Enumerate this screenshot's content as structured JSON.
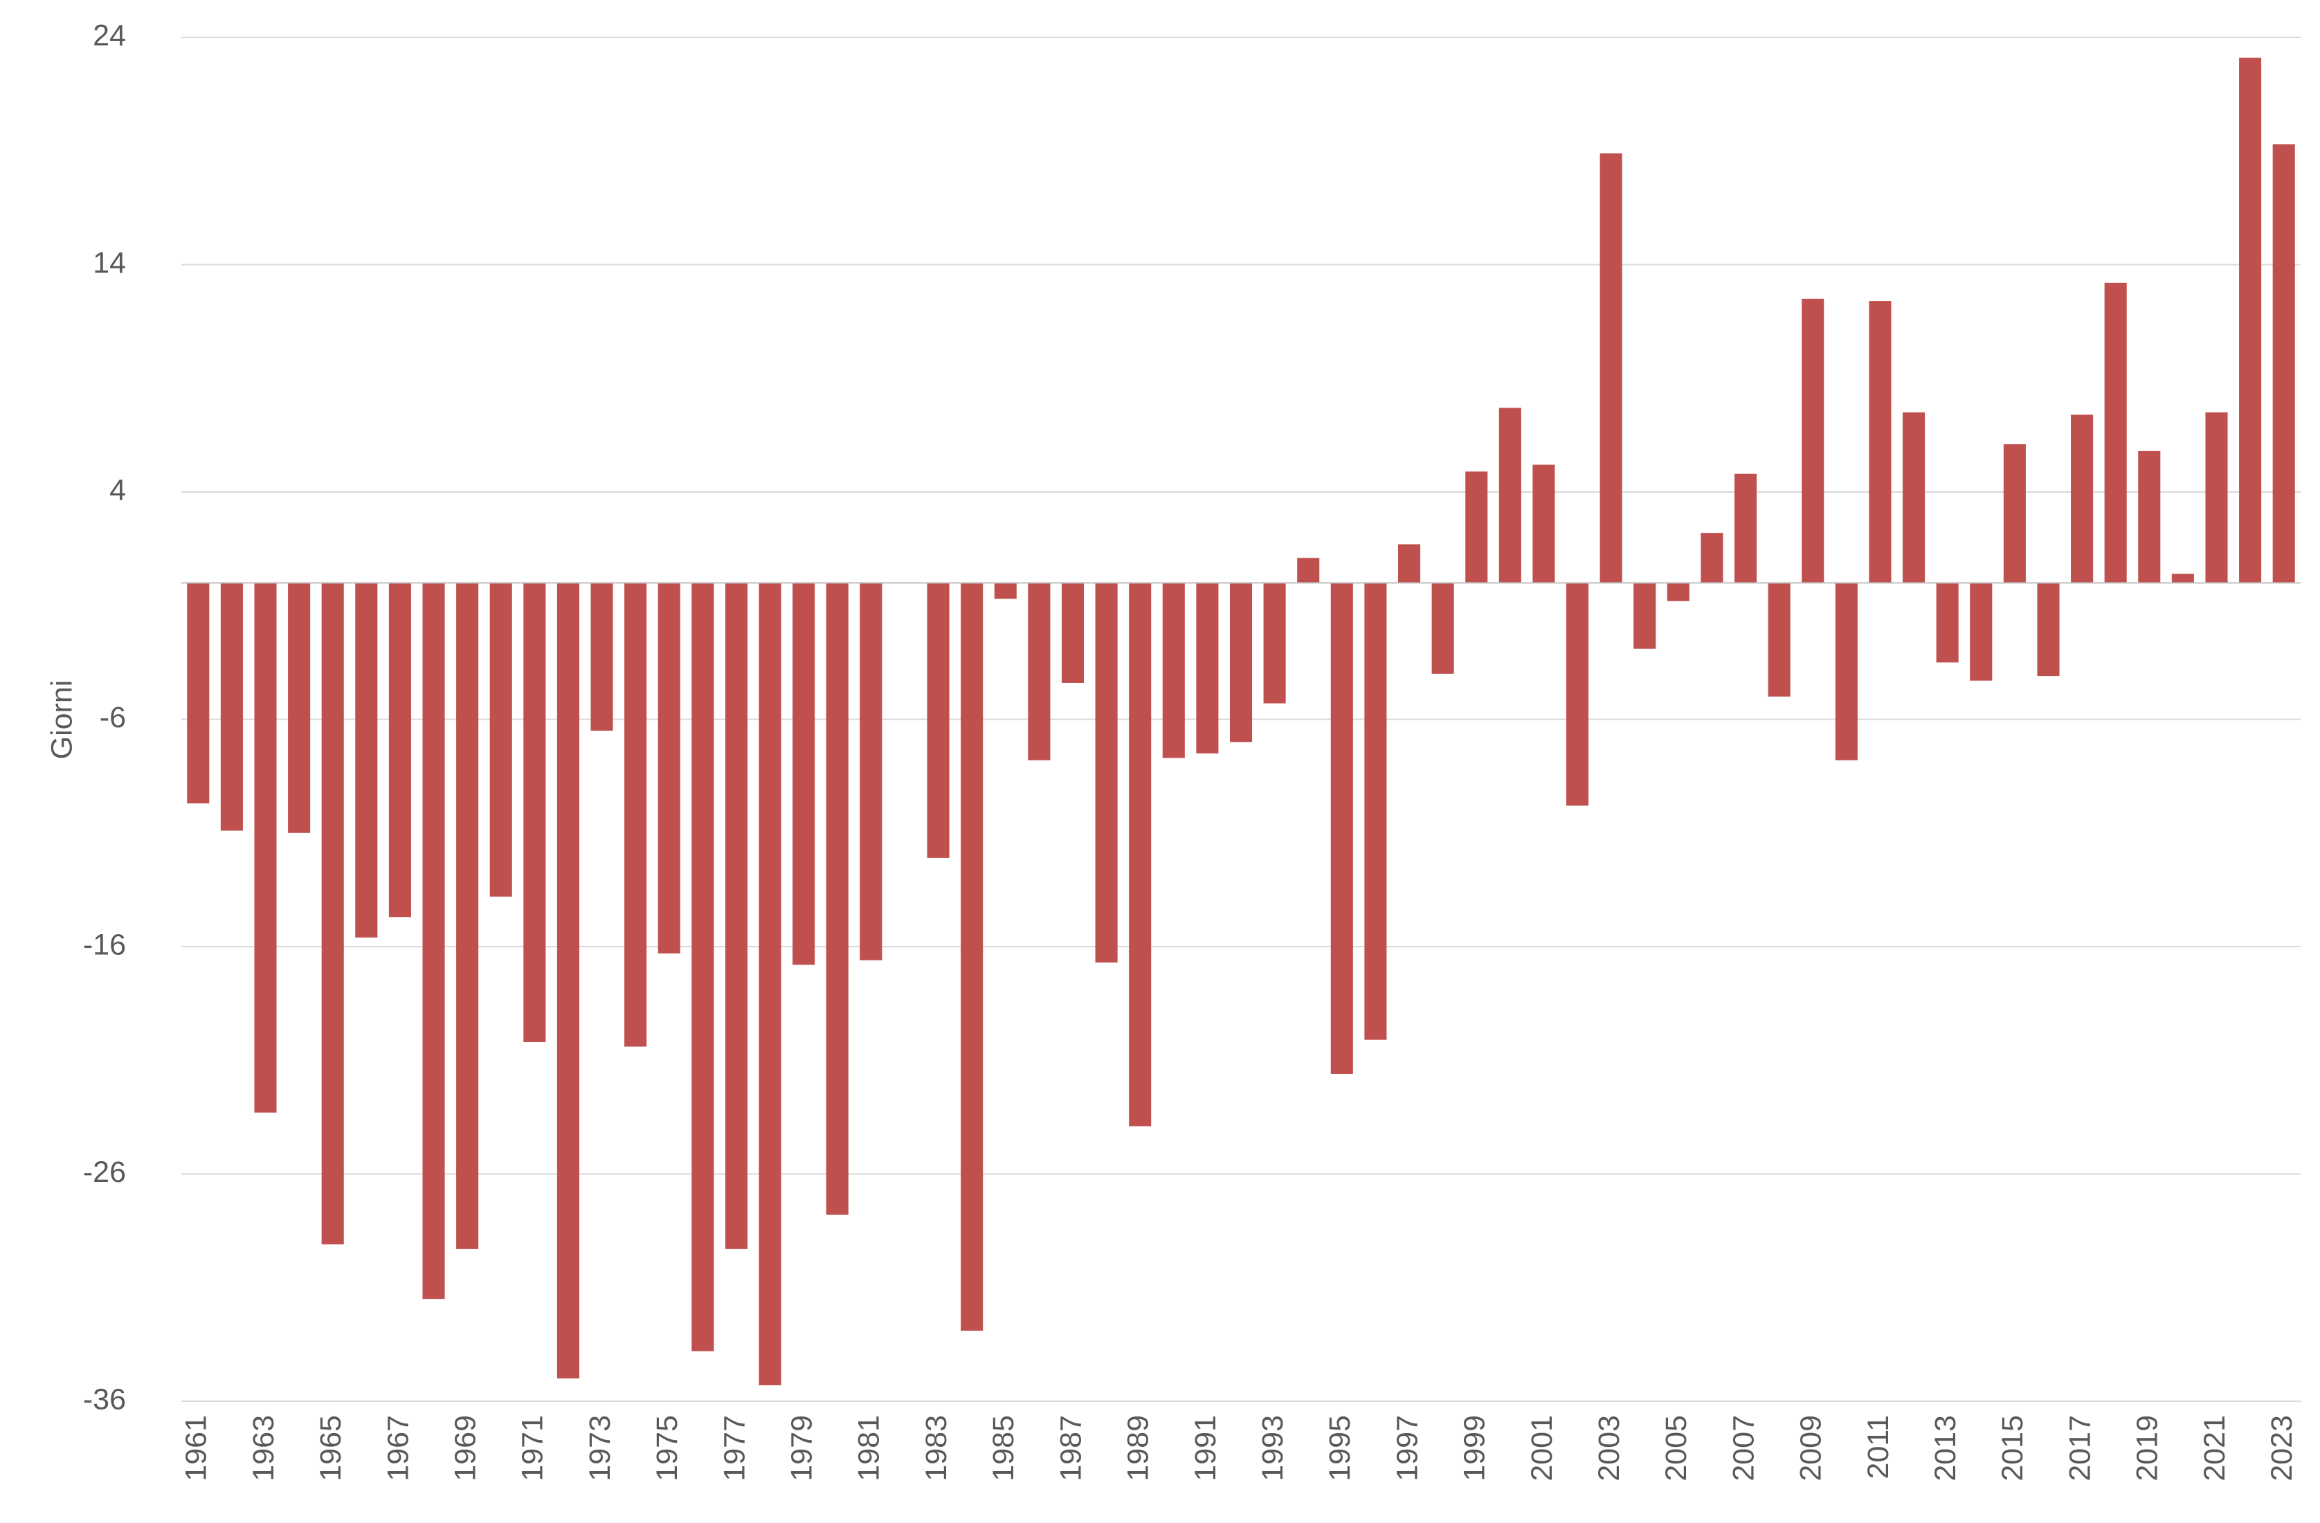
{
  "chart_data": {
    "type": "bar",
    "y_label": "Giorni",
    "categories": [
      "1961",
      null,
      "1963",
      null,
      "1965",
      null,
      "1967",
      null,
      "1969",
      null,
      "1971",
      null,
      "1973",
      null,
      "1975",
      null,
      "1977",
      null,
      "1979",
      null,
      "1981",
      null,
      "1983",
      null,
      "1985",
      null,
      "1987",
      null,
      "1989",
      null,
      "1991",
      null,
      "1993",
      null,
      "1995",
      null,
      "1997",
      null,
      "1999",
      null,
      "2001",
      null,
      "2003",
      null,
      "2005",
      null,
      "2007",
      null,
      "2009",
      null,
      "2011",
      null,
      "2013",
      null,
      "2015",
      null,
      "2017",
      null,
      "2019",
      null,
      "2021",
      null,
      "2023"
    ],
    "values": [
      -9.7,
      -10.9,
      -23.3,
      -11.0,
      -29.1,
      -15.6,
      -14.7,
      -31.5,
      -29.3,
      -13.8,
      -20.2,
      -35.0,
      -6.5,
      -20.4,
      -16.3,
      -33.8,
      -29.3,
      -35.3,
      -16.8,
      -27.8,
      -16.6,
      null,
      -12.1,
      -32.9,
      -0.7,
      -7.8,
      -4.4,
      -16.7,
      -23.9,
      -7.7,
      -7.5,
      -7.0,
      -5.3,
      1.1,
      -21.6,
      -20.1,
      1.7,
      -4.0,
      4.9,
      7.7,
      5.2,
      -9.8,
      18.9,
      -2.9,
      -0.8,
      2.2,
      4.8,
      -5.0,
      12.5,
      -7.8,
      12.4,
      7.5,
      -3.5,
      -4.3,
      6.1,
      -4.1,
      7.4,
      13.2,
      5.8,
      0.4,
      7.5,
      23.1,
      19.3
    ],
    "color": "#c0504d",
    "ylim": [
      -36,
      24
    ],
    "yticks": [
      24,
      14,
      4,
      -6,
      -16,
      -26,
      -36
    ],
    "grid": true
  }
}
